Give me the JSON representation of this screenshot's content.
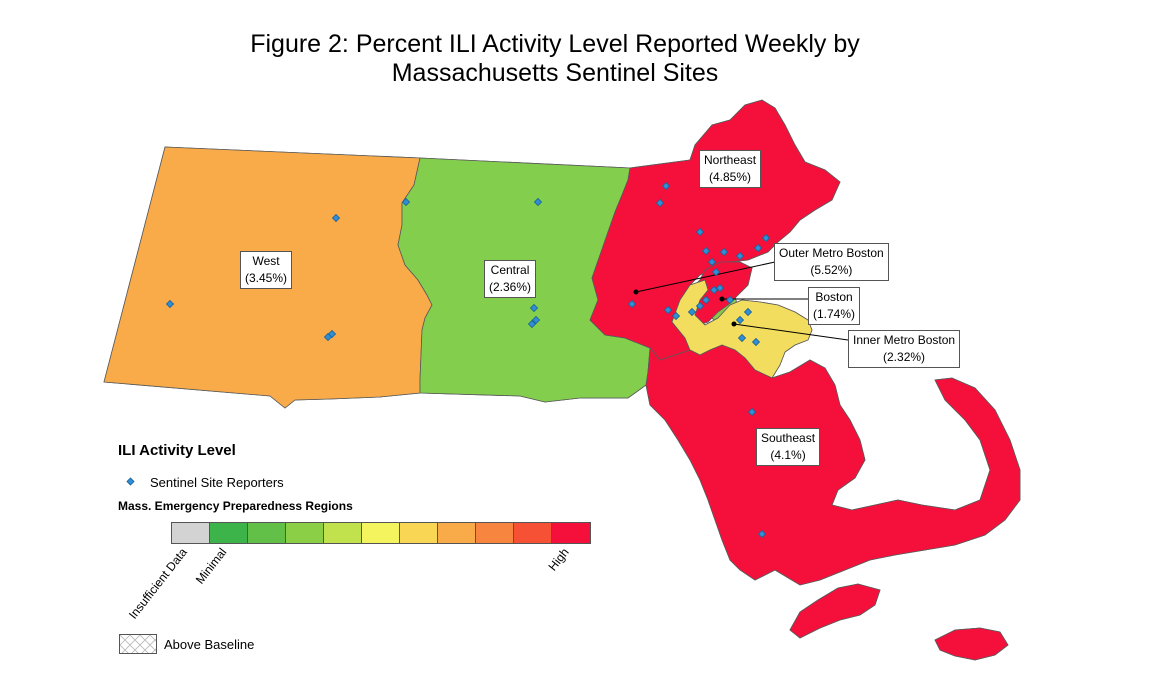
{
  "title": {
    "line1": "Figure 2: Percent ILI Activity Level Reported Weekly by",
    "line2": "Massachusetts Sentinel Sites"
  },
  "regions": [
    {
      "name": "West",
      "value": "(3.45%)",
      "color": "#F9AB49"
    },
    {
      "name": "Central",
      "value": "(2.36%)",
      "color": "#83CF4D"
    },
    {
      "name": "Northeast",
      "value": "(4.85%)",
      "color": "#F5103C"
    },
    {
      "name": "Outer Metro Boston",
      "value": "(5.52%)",
      "color": "#F5103C"
    },
    {
      "name": "Boston",
      "value": "(1.74%)",
      "color": "#8BC94C"
    },
    {
      "name": "Inner Metro Boston",
      "value": "(2.32%)",
      "color": "#F3DD5E"
    },
    {
      "name": "Southeast",
      "value": "(4.1%)",
      "color": "#F5103C"
    }
  ],
  "legend": {
    "title": "ILI Activity Level",
    "sentinel_label": "Sentinel Site Reporters",
    "regions_title": "Mass. Emergency Preparedness Regions",
    "ramp_colors": [
      "#d3d3d3",
      "#3db44a",
      "#62bf48",
      "#8bcf46",
      "#c1e24c",
      "#f3f45e",
      "#f9d653",
      "#f9ab49",
      "#f8853f",
      "#f65135",
      "#f5103c"
    ],
    "ticks": {
      "insufficient": "Insufficient Data",
      "minimal": "Minimal",
      "high": "High"
    },
    "baseline_label": "Above Baseline"
  },
  "colors": {
    "sentinel": "#2E8FD6",
    "outline": "#5a5a5a"
  }
}
